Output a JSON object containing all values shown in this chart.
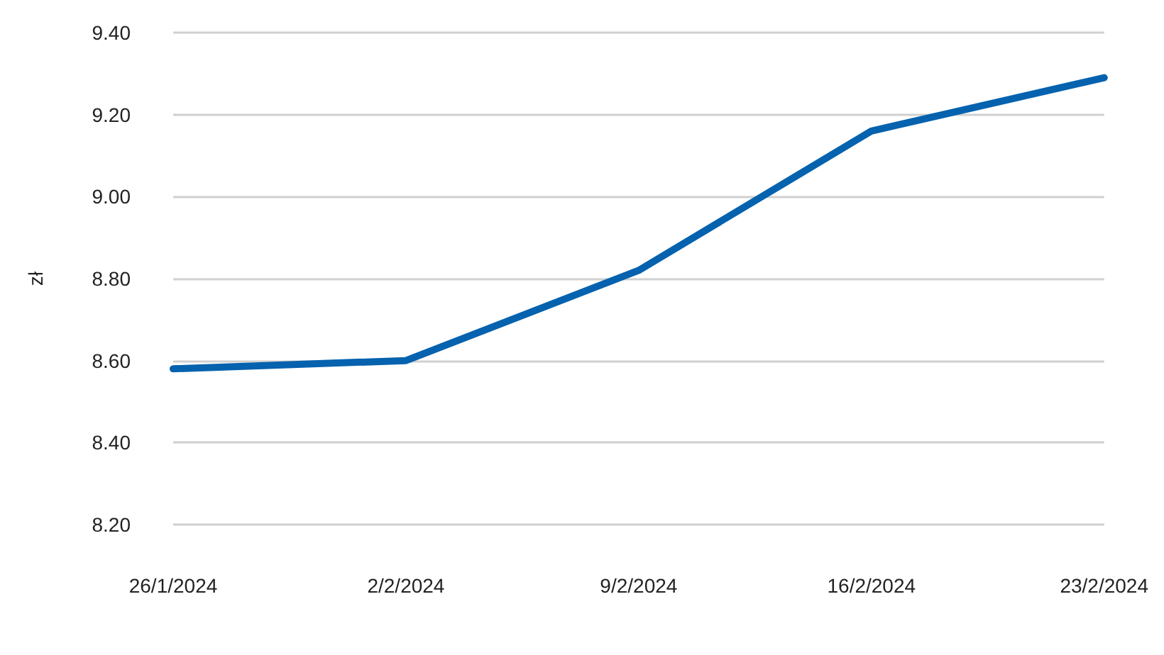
{
  "chart_data": {
    "type": "line",
    "ylabel": "zł",
    "categories": [
      "26/1/2024",
      "2/2/2024",
      "9/2/2024",
      "16/2/2024",
      "23/2/2024"
    ],
    "series": [
      {
        "color": "#0462ae",
        "values": [
          8.58,
          8.6,
          8.82,
          9.16,
          9.29
        ]
      }
    ],
    "ylim": [
      8.2,
      9.4
    ],
    "yticks": [
      {
        "value": 8.2,
        "label": "8.20"
      },
      {
        "value": 8.4,
        "label": "8.40"
      },
      {
        "value": 8.6,
        "label": "8.60"
      },
      {
        "value": 8.8,
        "label": "8.80"
      },
      {
        "value": 9.0,
        "label": "9.00"
      },
      {
        "value": 9.2,
        "label": "9.20"
      },
      {
        "value": 9.4,
        "label": "9.40"
      }
    ],
    "grid": "y"
  }
}
